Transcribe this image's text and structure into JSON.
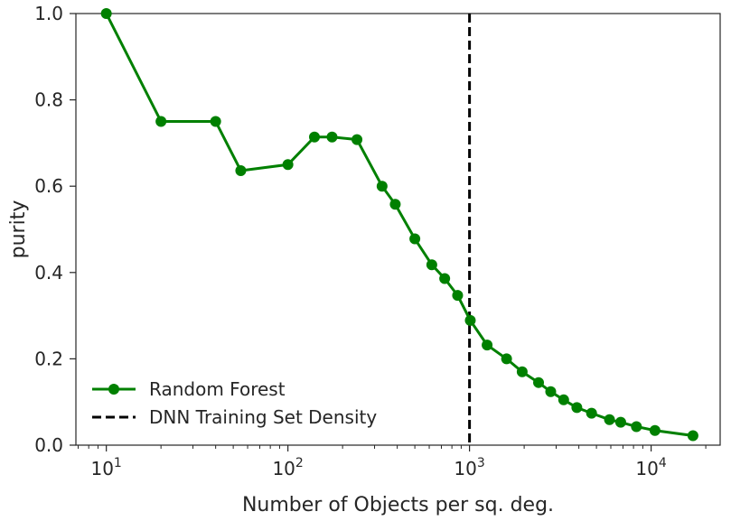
{
  "chart_data": {
    "type": "line",
    "xlabel": "Number of Objects per sq. deg.",
    "ylabel": "purity",
    "xscale": "log",
    "xlim": [
      6.8,
      24000
    ],
    "ylim": [
      0,
      1
    ],
    "xticks": [
      10,
      100,
      1000,
      10000
    ],
    "xtick_labels": [
      {
        "base": "10",
        "exp": "1"
      },
      {
        "base": "10",
        "exp": "2"
      },
      {
        "base": "10",
        "exp": "3"
      },
      {
        "base": "10",
        "exp": "4"
      }
    ],
    "yticks": [
      0.0,
      0.2,
      0.4,
      0.6,
      0.8,
      1.0
    ],
    "ytick_labels": [
      "0.0",
      "0.2",
      "0.4",
      "0.6",
      "0.8",
      "1.0"
    ],
    "grid": false,
    "legend": {
      "placement": "lower-left",
      "entries": [
        {
          "label": "Random Forest",
          "style": "line-marker",
          "color": "#008000"
        },
        {
          "label": "DNN Training Set Density",
          "style": "dashed",
          "color": "#000000"
        }
      ]
    },
    "series": [
      {
        "name": "Random Forest",
        "color": "#008000",
        "x": [
          10,
          20,
          40,
          55,
          100,
          140,
          175,
          240,
          330,
          390,
          500,
          620,
          730,
          860,
          1010,
          1250,
          1600,
          1950,
          2400,
          2800,
          3300,
          3900,
          4700,
          5900,
          6800,
          8300,
          10500,
          17000
        ],
        "y": [
          1.0,
          0.75,
          0.75,
          0.636,
          0.65,
          0.714,
          0.714,
          0.708,
          0.6,
          0.558,
          0.478,
          0.418,
          0.386,
          0.347,
          0.289,
          0.232,
          0.2,
          0.17,
          0.145,
          0.124,
          0.105,
          0.087,
          0.074,
          0.059,
          0.053,
          0.043,
          0.034,
          0.022
        ]
      }
    ],
    "vline": {
      "name": "DNN Training Set Density",
      "x": 1000,
      "color": "#000000",
      "style": "dashed"
    }
  }
}
